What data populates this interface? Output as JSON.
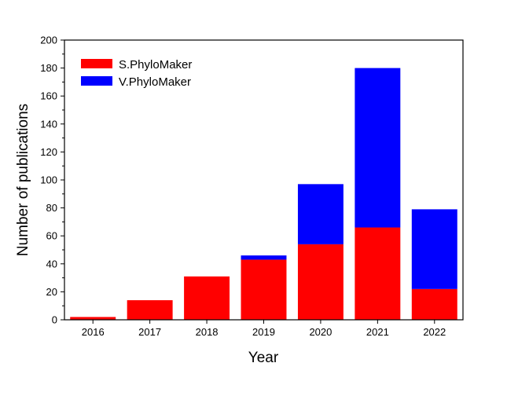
{
  "chart_data": {
    "type": "bar",
    "stacked": true,
    "title": "",
    "xlabel": "Year",
    "ylabel": "Number of publications",
    "categories": [
      "2016",
      "2017",
      "2018",
      "2019",
      "2020",
      "2021",
      "2022"
    ],
    "series": [
      {
        "name": "S.PhyloMaker",
        "color": "#ff0000",
        "values": [
          2,
          14,
          31,
          43,
          54,
          66,
          22
        ]
      },
      {
        "name": "V.PhyloMaker",
        "color": "#0000ff",
        "values": [
          0,
          0,
          0,
          3,
          43,
          114,
          57
        ]
      }
    ],
    "ylim": [
      0,
      200
    ],
    "yticks": [
      "0",
      "20",
      "40",
      "60",
      "80",
      "100",
      "120",
      "140",
      "160",
      "180",
      "200"
    ],
    "grid": false,
    "legend_position": "top-left"
  }
}
